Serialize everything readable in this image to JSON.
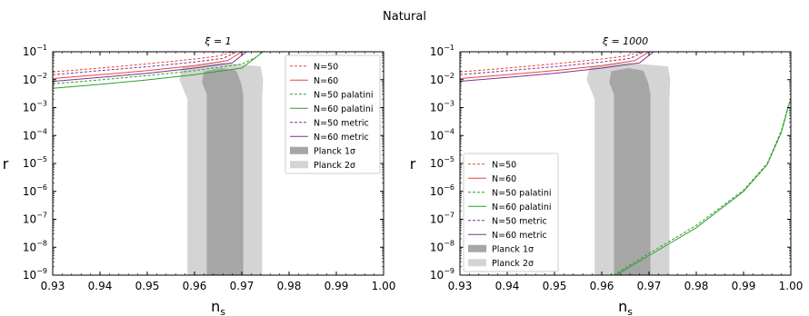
{
  "figure": {
    "suptitle": "Natural"
  },
  "chart_data": [
    {
      "type": "line",
      "title": "ξ = 1",
      "xlabel": "n",
      "xlabel_sub": "s",
      "ylabel": "r",
      "xlim": [
        0.93,
        1.0
      ],
      "ylim": [
        1e-09,
        0.1
      ],
      "yscale": "log",
      "xticks": [
        "0.93",
        "0.94",
        "0.95",
        "0.96",
        "0.97",
        "0.98",
        "0.99",
        "1.00"
      ],
      "legend_position": "upper-right",
      "planck_regions": [
        {
          "name": "Planck 1σ",
          "color": "#a6a6a6",
          "x": [
            0.9626,
            0.9626,
            0.9616,
            0.962,
            0.9656,
            0.9688,
            0.9698,
            0.9703,
            0.9703
          ],
          "y": [
            1e-09,
            0.003,
            0.008,
            0.02,
            0.026,
            0.021,
            0.008,
            0.003,
            1e-09
          ]
        },
        {
          "name": "Planck 2σ",
          "color": "#d4d4d4",
          "x": [
            0.9585,
            0.9585,
            0.9568,
            0.9575,
            0.9656,
            0.974,
            0.9745,
            0.9743,
            0.9743
          ],
          "y": [
            1e-09,
            0.002,
            0.01,
            0.03,
            0.04,
            0.03,
            0.01,
            0.002,
            1e-09
          ]
        }
      ],
      "series": [
        {
          "name": "N=50",
          "color": "#e8473f",
          "dash": true,
          "x": [
            0.93,
            0.94,
            0.95,
            0.96,
            0.965,
            0.968
          ],
          "y": [
            0.019,
            0.026,
            0.037,
            0.055,
            0.07,
            0.1
          ]
        },
        {
          "name": "N=60",
          "color": "#e8473f",
          "dash": false,
          "x": [
            0.93,
            0.94,
            0.95,
            0.96,
            0.967,
            0.97
          ],
          "y": [
            0.011,
            0.015,
            0.021,
            0.032,
            0.048,
            0.1
          ]
        },
        {
          "name": "N=50 palatini",
          "color": "#2ca02c",
          "dash": true,
          "x": [
            0.93,
            0.94,
            0.95,
            0.96,
            0.97,
            0.973
          ],
          "y": [
            0.0071,
            0.0098,
            0.014,
            0.021,
            0.036,
            0.064
          ]
        },
        {
          "name": "N=60 palatini",
          "color": "#2ca02c",
          "dash": false,
          "x": [
            0.93,
            0.94,
            0.95,
            0.96,
            0.97,
            0.9745
          ],
          "y": [
            0.0049,
            0.0068,
            0.0098,
            0.015,
            0.026,
            0.1
          ]
        },
        {
          "name": "N=50 metric",
          "color": "#7b3294",
          "dash": true,
          "x": [
            0.93,
            0.94,
            0.95,
            0.96,
            0.966,
            0.969
          ],
          "y": [
            0.015,
            0.021,
            0.029,
            0.043,
            0.058,
            0.1
          ]
        },
        {
          "name": "N=60 metric",
          "color": "#7b3294",
          "dash": false,
          "x": [
            0.93,
            0.94,
            0.95,
            0.96,
            0.968,
            0.971
          ],
          "y": [
            0.0087,
            0.012,
            0.017,
            0.026,
            0.04,
            0.1
          ]
        }
      ]
    },
    {
      "type": "line",
      "title": "ξ = 1000",
      "xlabel": "n",
      "xlabel_sub": "s",
      "ylabel": "r",
      "xlim": [
        0.93,
        1.0
      ],
      "ylim": [
        1e-09,
        0.1
      ],
      "yscale": "log",
      "xticks": [
        "0.93",
        "0.94",
        "0.95",
        "0.96",
        "0.97",
        "0.98",
        "0.99",
        "1.00"
      ],
      "legend_position": "lower-left",
      "planck_regions": [
        {
          "name": "Planck 1σ",
          "color": "#a6a6a6",
          "x": [
            0.9626,
            0.9626,
            0.9616,
            0.962,
            0.9656,
            0.9688,
            0.9698,
            0.9703,
            0.9703
          ],
          "y": [
            1e-09,
            0.003,
            0.008,
            0.02,
            0.026,
            0.021,
            0.008,
            0.003,
            1e-09
          ]
        },
        {
          "name": "Planck 2σ",
          "color": "#d4d4d4",
          "x": [
            0.9585,
            0.9585,
            0.9568,
            0.9575,
            0.9656,
            0.974,
            0.9745,
            0.9743,
            0.9743
          ],
          "y": [
            1e-09,
            0.002,
            0.01,
            0.03,
            0.04,
            0.03,
            0.01,
            0.002,
            1e-09
          ]
        }
      ],
      "series": [
        {
          "name": "N=50",
          "color": "#e8473f",
          "dash": true,
          "x": [
            0.93,
            0.94,
            0.95,
            0.96,
            0.965,
            0.968
          ],
          "y": [
            0.019,
            0.026,
            0.037,
            0.055,
            0.07,
            0.1
          ]
        },
        {
          "name": "N=60",
          "color": "#e8473f",
          "dash": false,
          "x": [
            0.93,
            0.94,
            0.95,
            0.96,
            0.967,
            0.97
          ],
          "y": [
            0.011,
            0.015,
            0.021,
            0.032,
            0.048,
            0.1
          ]
        },
        {
          "name": "N=50 palatini",
          "color": "#2ca02c",
          "dash": true,
          "x": [
            0.9625,
            0.97,
            0.98,
            0.99,
            0.995,
            0.998,
            0.9995,
            1.0
          ],
          "y": [
            1e-09,
            6e-09,
            6e-08,
            1.1e-06,
            1e-05,
            0.00015,
            0.0012,
            0.0021
          ]
        },
        {
          "name": "N=60 palatini",
          "color": "#2ca02c",
          "dash": false,
          "x": [
            0.963,
            0.97,
            0.98,
            0.99,
            0.995,
            0.998,
            0.9995,
            1.0
          ],
          "y": [
            1e-09,
            5e-09,
            5e-08,
            1e-06,
            9e-06,
            0.00013,
            0.0011,
            0.0019
          ]
        },
        {
          "name": "N=50 metric",
          "color": "#7b3294",
          "dash": true,
          "x": [
            0.93,
            0.94,
            0.95,
            0.96,
            0.966,
            0.969
          ],
          "y": [
            0.015,
            0.021,
            0.029,
            0.043,
            0.058,
            0.1
          ]
        },
        {
          "name": "N=60 metric",
          "color": "#7b3294",
          "dash": false,
          "x": [
            0.93,
            0.94,
            0.95,
            0.96,
            0.968,
            0.971
          ],
          "y": [
            0.0087,
            0.012,
            0.017,
            0.026,
            0.04,
            0.1
          ]
        }
      ]
    }
  ]
}
